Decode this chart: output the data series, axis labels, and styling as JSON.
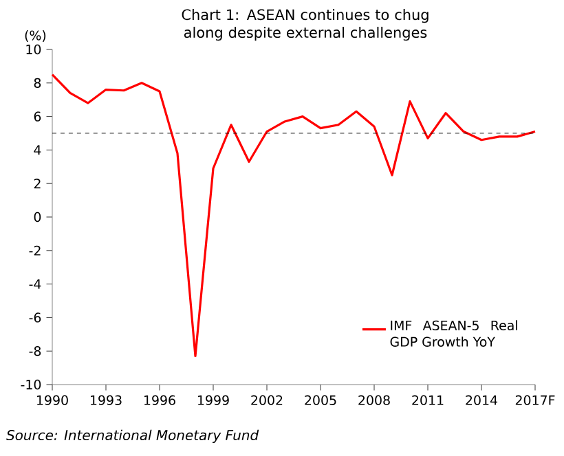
{
  "chart_data": {
    "type": "line",
    "title": "Chart 1: ASEAN continues to chug along despite external challenges",
    "ylabel": "(%)",
    "x": [
      1990,
      1991,
      1992,
      1993,
      1994,
      1995,
      1996,
      1997,
      1998,
      1999,
      2000,
      2001,
      2002,
      2003,
      2004,
      2005,
      2006,
      2007,
      2008,
      2009,
      2010,
      2011,
      2012,
      2013,
      2014,
      2015,
      2016,
      2017
    ],
    "series": [
      {
        "name": "IMF ASEAN-5 Real GDP Growth YoY",
        "color": "#ff0000",
        "values": [
          8.5,
          7.4,
          6.8,
          7.6,
          7.55,
          8.0,
          7.5,
          3.8,
          -8.3,
          2.9,
          5.5,
          3.3,
          5.1,
          5.7,
          6.0,
          5.3,
          5.5,
          6.3,
          5.4,
          2.5,
          6.9,
          4.7,
          6.2,
          5.1,
          4.6,
          4.8,
          4.8,
          5.1
        ]
      }
    ],
    "xlim": [
      1990,
      2017
    ],
    "xticks": [
      1990,
      1993,
      1996,
      1999,
      2002,
      2005,
      2008,
      2011,
      2014,
      {
        "value": 2017,
        "label": "2017F"
      }
    ],
    "ylim": [
      -10,
      10
    ],
    "yticks": [
      -10,
      -8,
      -6,
      -4,
      -2,
      0,
      2,
      4,
      6,
      8,
      10
    ],
    "ref_lines": [
      {
        "axis": "y",
        "value": 5,
        "color": "#000000",
        "line_style": "dashed"
      }
    ],
    "legend": "bottom right",
    "grid": false,
    "marker": "none",
    "line_style": "solid",
    "annotations": [
      "*Source: International Monetary Fund*"
    ]
  }
}
